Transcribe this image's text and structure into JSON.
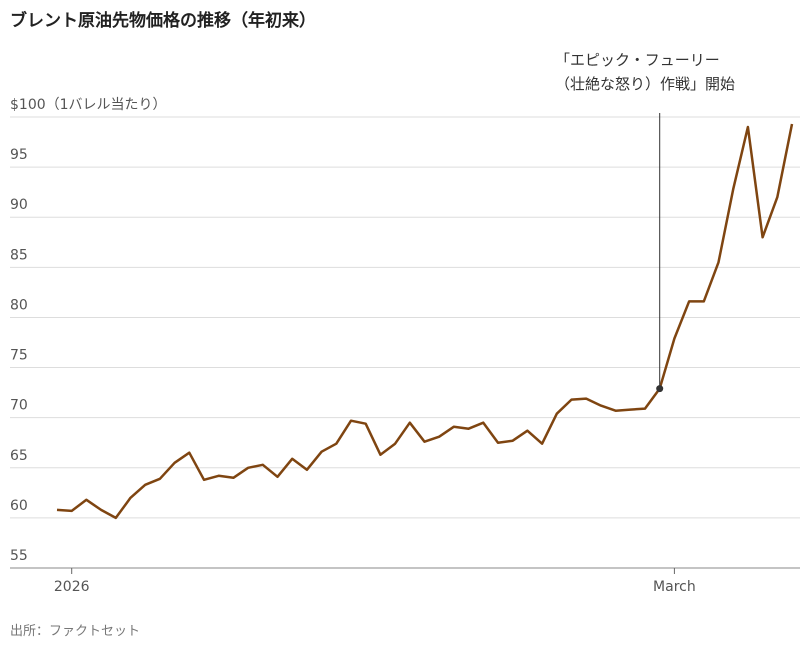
{
  "chart_data": {
    "type": "line",
    "title": "ブレント原油先物価格の推移（年初来）",
    "source": "出所：ファクトセット",
    "annotation": [
      "「エピック・フューリー",
      "（壮絶な怒り）作戦」開始"
    ],
    "categories": [
      null,
      "2026",
      null,
      null,
      null,
      null,
      null,
      null,
      null,
      null,
      null,
      null,
      null,
      null,
      null,
      null,
      null,
      null,
      null,
      null,
      null,
      null,
      null,
      null,
      null,
      null,
      null,
      null,
      null,
      null,
      null,
      null,
      null,
      null,
      null,
      null,
      null,
      null,
      null,
      null,
      null,
      null,
      "March",
      null,
      null,
      null,
      null,
      null,
      null,
      null,
      null
    ],
    "series": [
      {
        "name": "ブレント原油先物",
        "color": "#7f4511",
        "values": [
          60.8,
          60.7,
          61.8,
          60.8,
          60.0,
          62.0,
          63.3,
          63.9,
          65.5,
          66.5,
          63.8,
          64.2,
          64.0,
          65.0,
          65.3,
          64.1,
          65.9,
          64.8,
          66.6,
          67.4,
          69.7,
          69.4,
          66.3,
          67.4,
          69.5,
          67.6,
          68.1,
          69.1,
          68.9,
          69.5,
          67.5,
          67.7,
          68.7,
          67.4,
          70.4,
          71.8,
          71.9,
          71.2,
          70.7,
          70.8,
          70.9,
          72.9,
          77.9,
          81.6,
          81.6,
          85.5,
          92.8,
          99.0,
          88.0,
          92.0,
          99.3
        ]
      }
    ],
    "ylim": [
      55,
      100
    ],
    "yticks": [
      55,
      60,
      65,
      70,
      75,
      80,
      85,
      90,
      95,
      {
        "value": 100,
        "label": "$100（1バレル当たり）"
      }
    ],
    "grid": true
  }
}
